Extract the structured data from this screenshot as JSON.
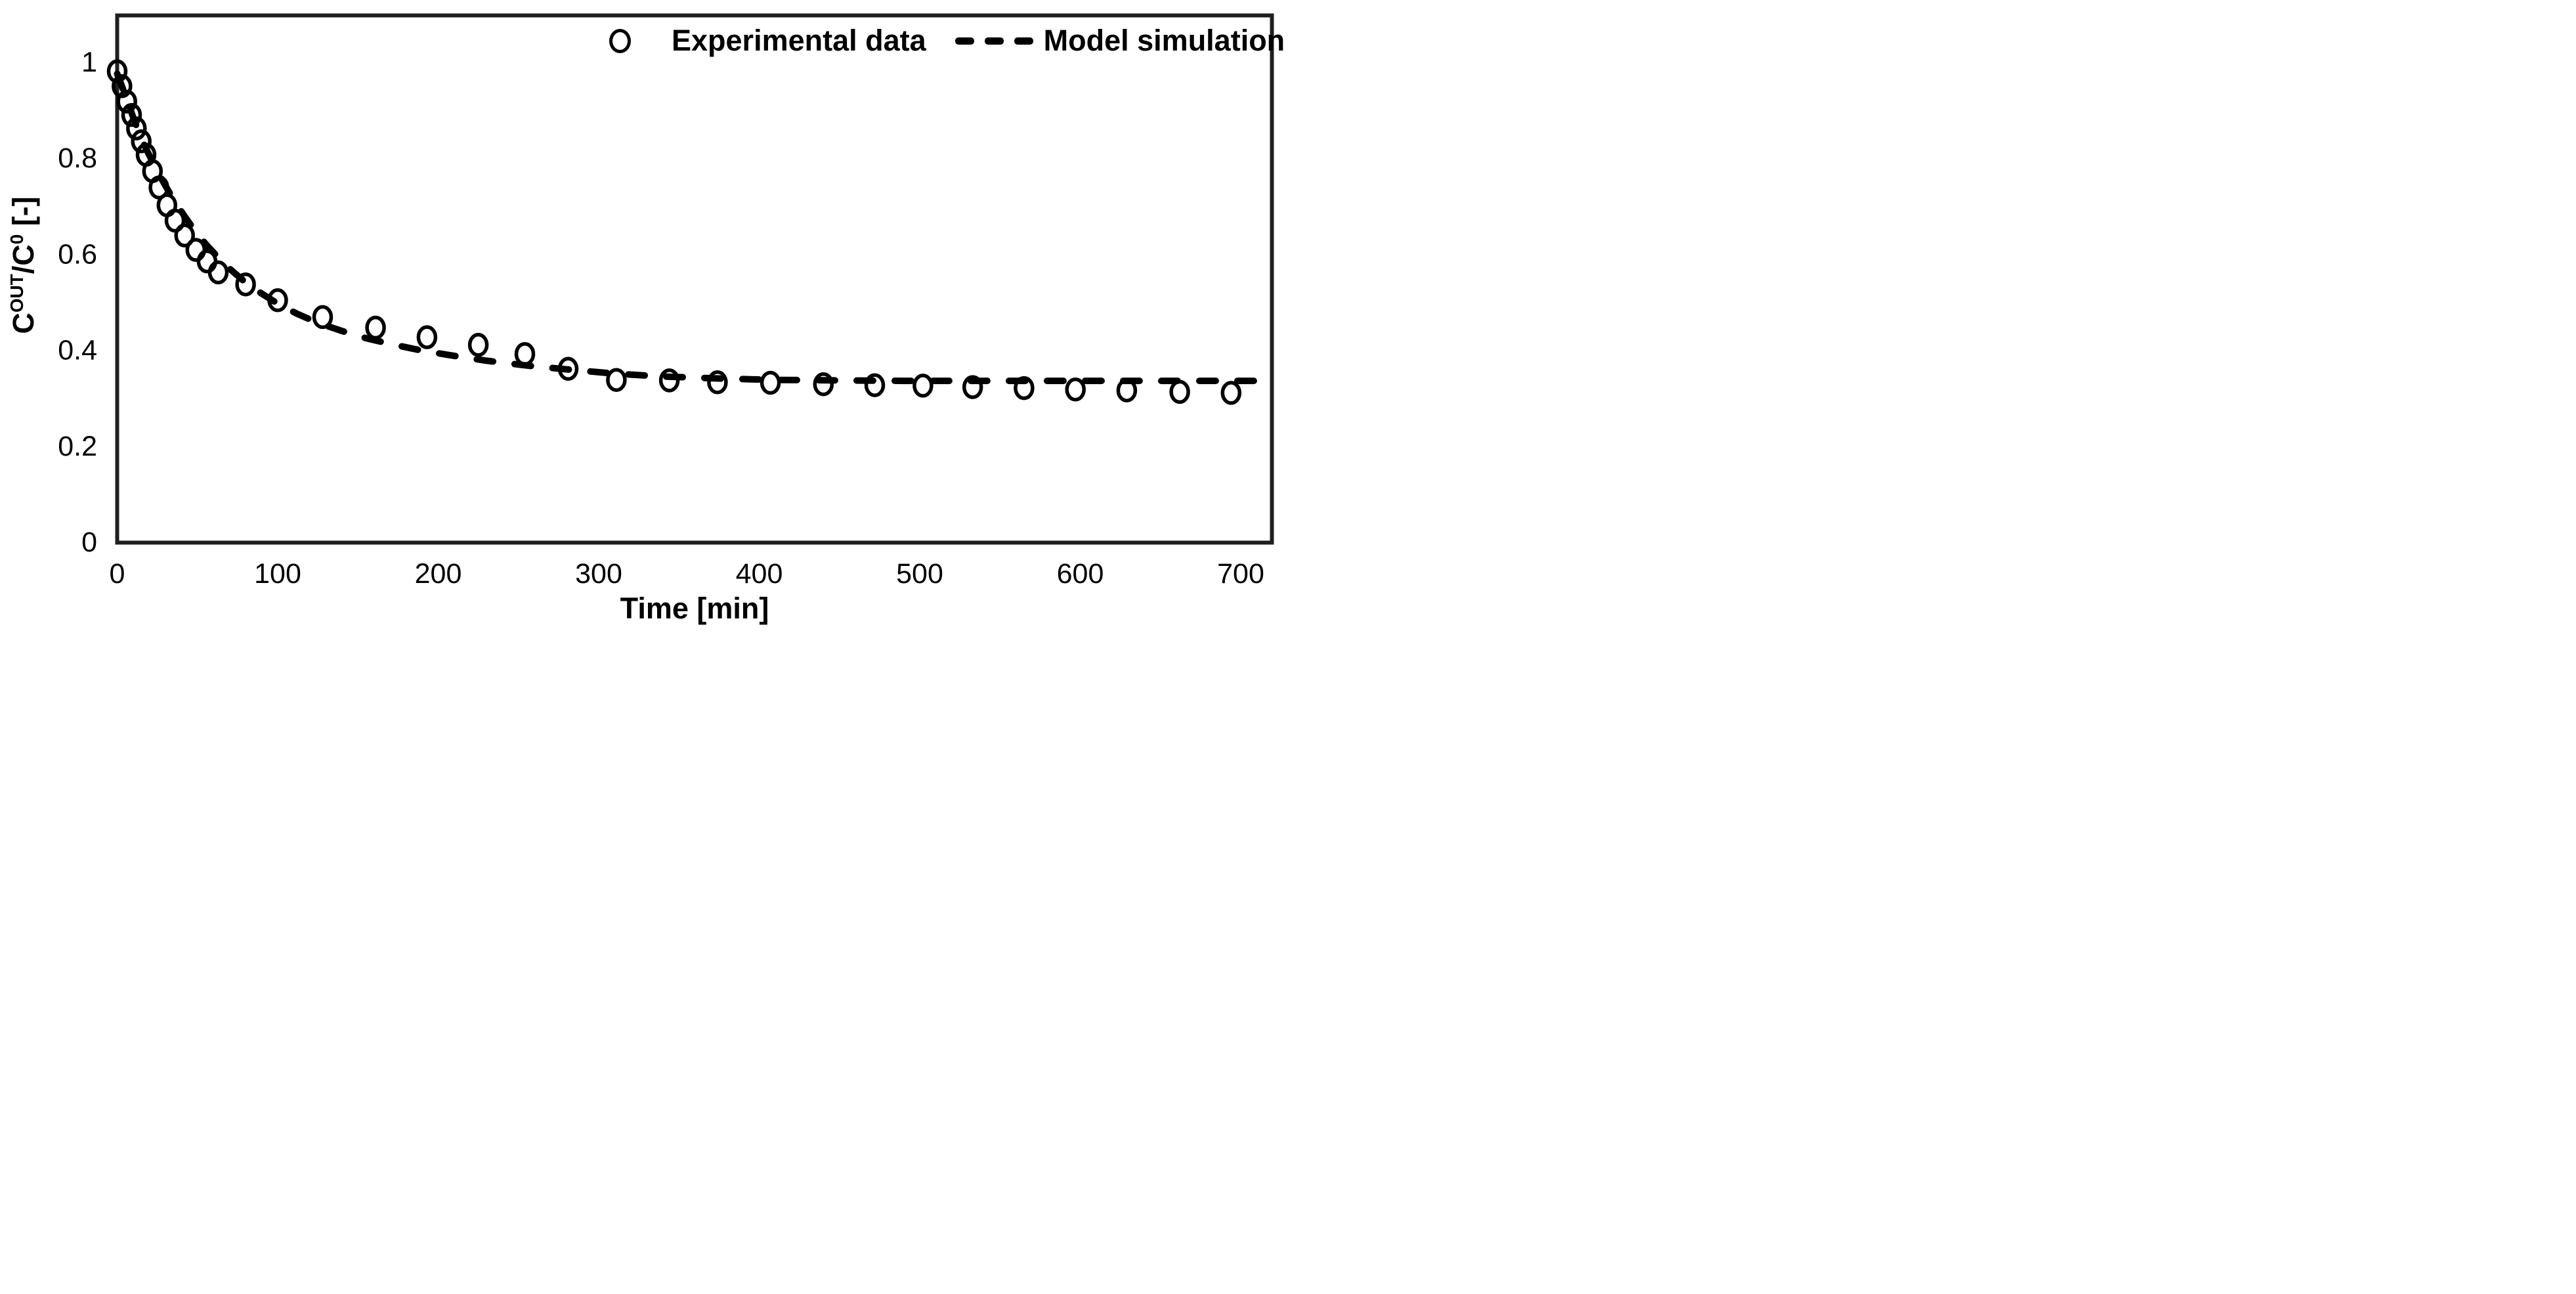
{
  "figure": {
    "background_color": "#ffffff",
    "ink_color": "#000000",
    "frame_color": "#1f1f1f"
  },
  "legend": {
    "position": "top-right-inside",
    "items": [
      {
        "id": "experimental",
        "label": "Experimental data",
        "marker": "open-circle"
      },
      {
        "id": "model",
        "label": "Model simulation",
        "marker": "dashed-line"
      }
    ]
  },
  "axes": {
    "x": {
      "title": "Time [min]",
      "tick_labels": [
        "0",
        "100",
        "200",
        "300",
        "400",
        "500",
        "600",
        "700"
      ],
      "tick_values": [
        0,
        100,
        200,
        300,
        400,
        500,
        600,
        700
      ],
      "min": 0,
      "max": 719
    },
    "y": {
      "title_plain": "C^OUT/C^0 [-]",
      "title_parts": [
        {
          "text": "C",
          "sup": false
        },
        {
          "text": "OUT",
          "sup": true
        },
        {
          "text": "/C",
          "sup": false
        },
        {
          "text": "0",
          "sup": true
        },
        {
          "text": " [-]",
          "sup": false
        }
      ],
      "tick_labels": [
        "1",
        "0.8",
        "0.6",
        "0.4",
        "0.2",
        "0"
      ],
      "tick_values": [
        1,
        0.8,
        0.6,
        0.4,
        0.2,
        0
      ],
      "min": 0,
      "max": 1.096
    }
  },
  "chart_data": {
    "type": "scatter",
    "title": "",
    "xlabel": "Time [min]",
    "ylabel": "C^OUT/C^0 [-]",
    "xlim": [
      0,
      719
    ],
    "ylim": [
      0,
      1.096
    ],
    "x_ticks": [
      0,
      100,
      200,
      300,
      400,
      500,
      600,
      700
    ],
    "y_ticks": [
      0,
      0.2,
      0.4,
      0.6,
      0.8,
      1
    ],
    "grid": false,
    "legend_position": "top-right-inside",
    "series": [
      {
        "name": "Experimental data",
        "type": "scatter",
        "marker": "open-circle",
        "color": "#000000",
        "points": [
          [
            0,
            0.98
          ],
          [
            3,
            0.949
          ],
          [
            6,
            0.917
          ],
          [
            9,
            0.889
          ],
          [
            12,
            0.861
          ],
          [
            15,
            0.834
          ],
          [
            18,
            0.806
          ],
          [
            22,
            0.772
          ],
          [
            26,
            0.738
          ],
          [
            31,
            0.701
          ],
          [
            36,
            0.669
          ],
          [
            42,
            0.638
          ],
          [
            49,
            0.608
          ],
          [
            56,
            0.584
          ],
          [
            63,
            0.561
          ],
          [
            80,
            0.536
          ],
          [
            100,
            0.503
          ],
          [
            128,
            0.468
          ],
          [
            161,
            0.446
          ],
          [
            193,
            0.426
          ],
          [
            225,
            0.41
          ],
          [
            254,
            0.391
          ],
          [
            281,
            0.36
          ],
          [
            311,
            0.337
          ],
          [
            344,
            0.336
          ],
          [
            374,
            0.332
          ],
          [
            407,
            0.331
          ],
          [
            440,
            0.328
          ],
          [
            472,
            0.326
          ],
          [
            502,
            0.325
          ],
          [
            533,
            0.322
          ],
          [
            565,
            0.32
          ],
          [
            597,
            0.317
          ],
          [
            629,
            0.315
          ],
          [
            662,
            0.312
          ],
          [
            694,
            0.31
          ]
        ]
      },
      {
        "name": "Model simulation",
        "type": "line",
        "style": "dashed",
        "color": "#000000",
        "points": [
          [
            0,
            0.975
          ],
          [
            5,
            0.931
          ],
          [
            10,
            0.884
          ],
          [
            15,
            0.84
          ],
          [
            20,
            0.805
          ],
          [
            25,
            0.772
          ],
          [
            30,
            0.742
          ],
          [
            36,
            0.708
          ],
          [
            42,
            0.678
          ],
          [
            49,
            0.645
          ],
          [
            56,
            0.617
          ],
          [
            63,
            0.592
          ],
          [
            71,
            0.566
          ],
          [
            80,
            0.54
          ],
          [
            90,
            0.517
          ],
          [
            100,
            0.496
          ],
          [
            112,
            0.475
          ],
          [
            125,
            0.456
          ],
          [
            140,
            0.439
          ],
          [
            155,
            0.424
          ],
          [
            170,
            0.412
          ],
          [
            190,
            0.398
          ],
          [
            210,
            0.387
          ],
          [
            230,
            0.377
          ],
          [
            255,
            0.367
          ],
          [
            280,
            0.359
          ],
          [
            310,
            0.35
          ],
          [
            340,
            0.344
          ],
          [
            375,
            0.34
          ],
          [
            410,
            0.337
          ],
          [
            450,
            0.336
          ],
          [
            490,
            0.335
          ],
          [
            530,
            0.335
          ],
          [
            570,
            0.335
          ],
          [
            610,
            0.335
          ],
          [
            650,
            0.335
          ],
          [
            690,
            0.335
          ],
          [
            719,
            0.335
          ]
        ]
      }
    ]
  }
}
